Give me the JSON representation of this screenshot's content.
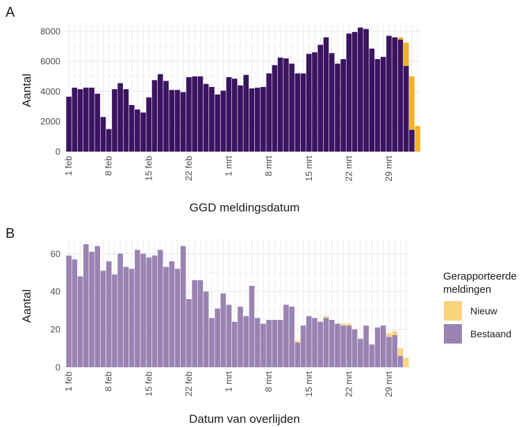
{
  "chart_data": [
    {
      "panel": "A",
      "type": "bar",
      "stacked": true,
      "xlabel": "GGD meldingsdatum",
      "ylabel": "Aantal",
      "ylim": [
        0,
        8600
      ],
      "y_ticks": [
        0,
        2000,
        4000,
        6000,
        8000
      ],
      "x_ticks": [
        {
          "i": 0,
          "label": "1 feb"
        },
        {
          "i": 7,
          "label": "8 feb"
        },
        {
          "i": 14,
          "label": "15 feb"
        },
        {
          "i": 21,
          "label": "22 feb"
        },
        {
          "i": 28,
          "label": "1 mrt"
        },
        {
          "i": 35,
          "label": "8 mrt"
        },
        {
          "i": 42,
          "label": "15 mrt"
        },
        {
          "i": 49,
          "label": "22 mrt"
        },
        {
          "i": 56,
          "label": "29 mrt"
        }
      ],
      "grid": true,
      "series": [
        {
          "name": "Bestaand",
          "color": "#3b1461",
          "values": [
            3650,
            4250,
            4150,
            4250,
            4250,
            3850,
            2300,
            1500,
            4150,
            4550,
            4150,
            3100,
            2800,
            2600,
            3600,
            4750,
            5150,
            4700,
            4100,
            4100,
            3950,
            4950,
            5000,
            5000,
            4500,
            4300,
            3800,
            4050,
            4950,
            4850,
            4400,
            5100,
            4200,
            4250,
            4300,
            5200,
            5750,
            6250,
            6200,
            5850,
            5200,
            5200,
            6500,
            6600,
            7100,
            7600,
            6550,
            5850,
            6150,
            7850,
            7950,
            8250,
            8150,
            6850,
            6150,
            6300,
            7700,
            7600,
            7450,
            5700,
            1450,
            0
          ]
        },
        {
          "name": "Nieuw",
          "color": "#f2b127",
          "values": [
            0,
            0,
            0,
            0,
            0,
            0,
            0,
            0,
            0,
            0,
            0,
            0,
            0,
            0,
            0,
            0,
            0,
            0,
            0,
            0,
            0,
            0,
            0,
            0,
            0,
            0,
            0,
            0,
            0,
            0,
            0,
            0,
            0,
            0,
            0,
            0,
            0,
            0,
            0,
            0,
            0,
            0,
            0,
            0,
            0,
            0,
            0,
            0,
            0,
            0,
            0,
            0,
            0,
            0,
            0,
            0,
            0,
            0,
            150,
            1550,
            3550,
            1700
          ]
        }
      ]
    },
    {
      "panel": "B",
      "type": "bar",
      "stacked": true,
      "xlabel": "Datum van overlijden",
      "ylabel": "Aantal",
      "ylim": [
        0,
        68
      ],
      "y_ticks": [
        0,
        20,
        40,
        60
      ],
      "x_ticks": [
        {
          "i": 0,
          "label": "1 feb"
        },
        {
          "i": 7,
          "label": "8 feb"
        },
        {
          "i": 14,
          "label": "15 feb"
        },
        {
          "i": 21,
          "label": "22 feb"
        },
        {
          "i": 28,
          "label": "1 mrt"
        },
        {
          "i": 35,
          "label": "8 mrt"
        },
        {
          "i": 42,
          "label": "15 mrt"
        },
        {
          "i": 49,
          "label": "22 mrt"
        },
        {
          "i": 56,
          "label": "29 mrt"
        }
      ],
      "grid": true,
      "series": [
        {
          "name": "Bestaand",
          "color": "#9a83b3",
          "values": [
            59,
            57,
            48,
            65,
            61,
            64,
            51,
            56,
            49,
            60,
            53,
            52,
            62,
            60,
            58,
            59,
            62,
            53,
            56,
            52,
            64,
            36,
            46,
            46,
            40,
            26,
            31,
            39,
            33,
            24,
            32,
            27,
            43,
            26,
            23,
            25,
            25,
            25,
            33,
            32,
            13,
            22,
            27,
            26,
            24,
            26,
            25,
            23,
            22,
            22,
            20,
            15,
            22,
            12,
            21,
            22,
            16,
            17,
            6,
            0
          ]
        },
        {
          "name": "Nieuw",
          "color": "#fcd47e",
          "values": [
            0,
            0,
            0,
            0,
            0,
            0,
            0,
            0,
            0,
            0,
            0,
            0,
            0,
            0,
            0,
            0,
            0,
            0,
            0,
            0,
            0,
            0,
            0,
            0,
            0,
            0,
            0,
            0,
            0,
            0,
            0,
            0,
            0,
            0,
            0,
            0,
            0,
            0,
            0,
            0,
            1,
            0,
            0,
            0,
            0,
            1,
            0,
            0,
            1,
            1,
            0,
            0,
            0,
            0,
            0,
            0,
            2,
            2,
            4,
            5
          ]
        }
      ]
    }
  ],
  "panels": {
    "a": {
      "label": "A",
      "xlabel": "GGD meldingsdatum",
      "ylabel": "Aantal"
    },
    "b": {
      "label": "B",
      "xlabel": "Datum van overlijden",
      "ylabel": "Aantal"
    }
  },
  "legend": {
    "title_line1": "Gerapporteerde",
    "title_line2": "meldingen",
    "items": [
      {
        "label": "Nieuw",
        "color": "#fcd47e"
      },
      {
        "label": "Bestaand",
        "color": "#9a83b3"
      }
    ]
  }
}
